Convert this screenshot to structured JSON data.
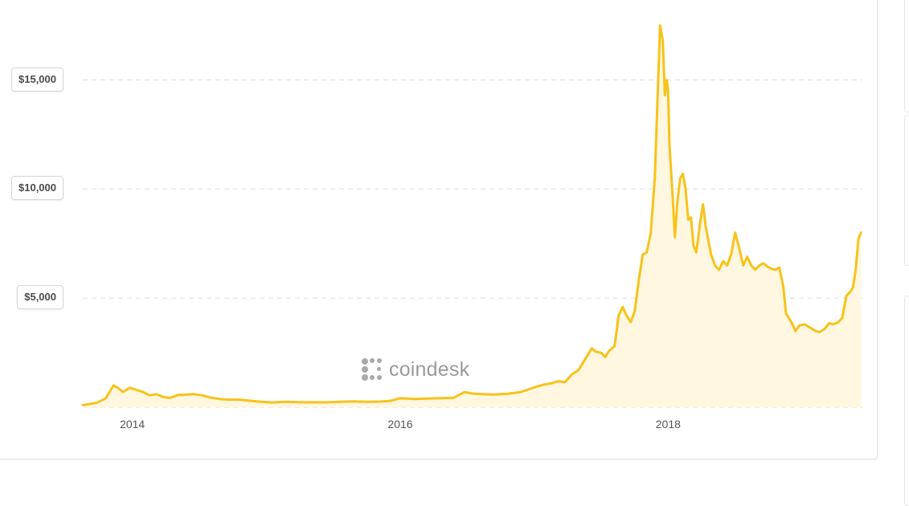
{
  "chart_data": {
    "type": "area",
    "title": "",
    "xlabel": "",
    "ylabel": "",
    "ylim": [
      -180,
      18000
    ],
    "xlim": [
      2013.63,
      2019.45
    ],
    "grid": true,
    "line_color": "#f7c31a",
    "fill_color": "#fff7df",
    "y_ticks": [
      {
        "value": 5000,
        "label": "$5,000"
      },
      {
        "value": 10000,
        "label": "$10,000"
      },
      {
        "value": 15000,
        "label": "$15,000"
      }
    ],
    "x_ticks": [
      {
        "value": 2014,
        "label": "2014"
      },
      {
        "value": 2016,
        "label": "2016"
      },
      {
        "value": 2018,
        "label": "2018"
      }
    ],
    "series": [
      {
        "name": "",
        "x": [
          2013.63,
          2013.73,
          2013.8,
          2013.86,
          2013.89,
          2013.93,
          2013.98,
          2014.03,
          2014.08,
          2014.13,
          2014.18,
          2014.23,
          2014.28,
          2014.34,
          2014.4,
          2014.46,
          2014.52,
          2014.58,
          2014.65,
          2014.72,
          2014.8,
          2014.88,
          2014.96,
          2015.04,
          2015.15,
          2015.25,
          2015.35,
          2015.45,
          2015.55,
          2015.65,
          2015.75,
          2015.85,
          2015.93,
          2016.0,
          2016.1,
          2016.2,
          2016.3,
          2016.4,
          2016.48,
          2016.55,
          2016.62,
          2016.7,
          2016.8,
          2016.9,
          2016.97,
          2017.02,
          2017.08,
          2017.13,
          2017.18,
          2017.23,
          2017.28,
          2017.33,
          2017.38,
          2017.43,
          2017.46,
          2017.5,
          2017.53,
          2017.56,
          2017.6,
          2017.63,
          2017.66,
          2017.69,
          2017.72,
          2017.75,
          2017.78,
          2017.81,
          2017.84,
          2017.87,
          2017.9,
          2017.92,
          2017.94,
          2017.96,
          2017.975,
          2017.99,
          2018.0,
          2018.01,
          2018.02,
          2018.035,
          2018.05,
          2018.07,
          2018.09,
          2018.11,
          2018.13,
          2018.15,
          2018.17,
          2018.19,
          2018.21,
          2018.24,
          2018.26,
          2018.28,
          2018.32,
          2018.35,
          2018.38,
          2018.41,
          2018.44,
          2018.47,
          2018.5,
          2018.53,
          2018.56,
          2018.59,
          2018.62,
          2018.65,
          2018.68,
          2018.71,
          2018.74,
          2018.77,
          2018.8,
          2018.83,
          2018.86,
          2018.88,
          2018.92,
          2018.95,
          2018.98,
          2019.02,
          2019.06,
          2019.1,
          2019.13,
          2019.17,
          2019.2,
          2019.23,
          2019.27,
          2019.3,
          2019.33,
          2019.36,
          2019.38,
          2019.4,
          2019.42,
          2019.44
        ],
        "y": [
          100,
          200,
          400,
          1000,
          900,
          700,
          900,
          800,
          700,
          550,
          600,
          470,
          430,
          560,
          580,
          600,
          550,
          450,
          380,
          350,
          350,
          300,
          250,
          220,
          250,
          230,
          230,
          230,
          250,
          270,
          250,
          260,
          300,
          420,
          380,
          400,
          420,
          440,
          700,
          620,
          600,
          580,
          620,
          700,
          850,
          950,
          1050,
          1100,
          1200,
          1150,
          1500,
          1700,
          2200,
          2700,
          2550,
          2500,
          2300,
          2600,
          2800,
          4200,
          4600,
          4200,
          3900,
          4400,
          5800,
          7000,
          7100,
          8000,
          10500,
          14000,
          17500,
          16800,
          14300,
          15000,
          14500,
          12000,
          11000,
          9500,
          7800,
          9500,
          10500,
          10700,
          10000,
          8600,
          8700,
          7400,
          7100,
          8500,
          9300,
          8300,
          7000,
          6500,
          6300,
          6700,
          6500,
          7000,
          8000,
          7300,
          6500,
          6900,
          6500,
          6300,
          6500,
          6600,
          6450,
          6350,
          6300,
          6400,
          5500,
          4300,
          3900,
          3500,
          3750,
          3800,
          3650,
          3500,
          3450,
          3600,
          3850,
          3800,
          3900,
          4100,
          5100,
          5300,
          5500,
          6300,
          7700,
          8000
        ]
      }
    ]
  },
  "watermark": {
    "text": "coindesk",
    "icon": "coindesk-logo-icon"
  }
}
